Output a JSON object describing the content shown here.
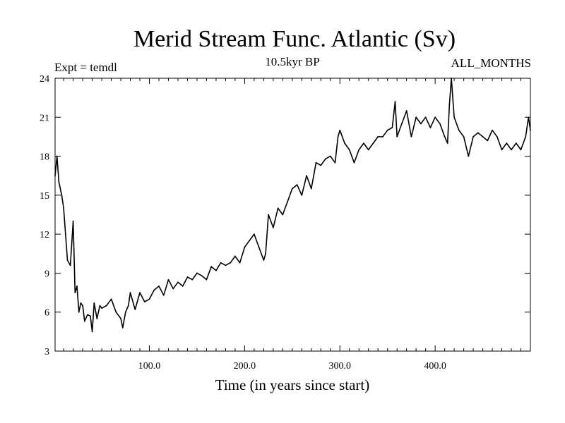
{
  "chart_data": {
    "type": "line",
    "title": "Merid Stream Func. Atlantic (Sv)",
    "left_label": "Expt = temdl",
    "center_label": "10.5kyr BP",
    "right_label": "ALL_MONTHS",
    "xlabel": "Time (in years since start)",
    "ylabel": "",
    "xlim": [
      1,
      500
    ],
    "ylim": [
      3,
      24
    ],
    "x_ticks": [
      100,
      200,
      300,
      400
    ],
    "x_tick_labels": [
      "100.0",
      "200.0",
      "300.0",
      "400.0"
    ],
    "y_ticks": [
      3,
      6,
      9,
      12,
      15,
      18,
      21,
      24
    ],
    "y_tick_labels": [
      "3",
      "6",
      "9",
      "12",
      "15",
      "18",
      "21",
      "24"
    ],
    "grid": false,
    "line_color": "#000000",
    "series": [
      {
        "name": "Merid Stream Func. Atlantic",
        "x": [
          1,
          3,
          5,
          8,
          10,
          12,
          14,
          17,
          20,
          22,
          24,
          26,
          28,
          30,
          32,
          35,
          38,
          40,
          42,
          45,
          48,
          50,
          55,
          60,
          65,
          70,
          72,
          75,
          78,
          80,
          85,
          90,
          95,
          100,
          105,
          110,
          115,
          120,
          125,
          130,
          135,
          140,
          145,
          150,
          155,
          160,
          165,
          170,
          175,
          180,
          185,
          190,
          195,
          200,
          205,
          210,
          215,
          220,
          222,
          225,
          230,
          235,
          240,
          245,
          250,
          255,
          260,
          265,
          270,
          275,
          280,
          285,
          290,
          295,
          298,
          300,
          305,
          310,
          315,
          320,
          325,
          330,
          335,
          340,
          345,
          350,
          355,
          358,
          360,
          365,
          370,
          375,
          380,
          385,
          390,
          395,
          400,
          405,
          410,
          413,
          415,
          417,
          420,
          425,
          430,
          435,
          440,
          445,
          450,
          455,
          460,
          465,
          470,
          475,
          480,
          485,
          490,
          495,
          498,
          500
        ],
        "values": [
          16.5,
          18,
          16,
          15,
          14,
          12,
          10,
          9.6,
          13,
          7.5,
          8,
          6,
          6.7,
          6.5,
          5.3,
          5.8,
          5.7,
          4.5,
          6.7,
          5.5,
          6.5,
          6.3,
          6.5,
          7,
          6,
          5.5,
          4.8,
          6,
          6.5,
          7.5,
          6.2,
          7.5,
          6.8,
          7,
          7.7,
          8,
          7.3,
          8.5,
          7.8,
          8.3,
          8,
          8.7,
          8.5,
          9,
          8.8,
          8.5,
          9.5,
          9.2,
          9.8,
          9.6,
          9.8,
          10.3,
          9.8,
          11,
          11.5,
          12,
          11,
          10,
          10.5,
          13.5,
          12.5,
          14,
          13.5,
          14.5,
          15.5,
          15.8,
          15,
          16.5,
          15.5,
          17.5,
          17.3,
          17.8,
          18,
          17.5,
          19.5,
          20,
          19,
          18.5,
          17.5,
          18.5,
          19,
          18.5,
          19,
          19.5,
          19.5,
          20,
          20.2,
          22.2,
          19.5,
          20.5,
          21.5,
          19.5,
          21,
          20.5,
          21,
          20.2,
          21,
          20.5,
          19.5,
          19,
          22,
          24,
          21,
          20,
          19.5,
          18,
          19.5,
          19.8,
          19.5,
          19.2,
          20,
          19.5,
          18.5,
          19,
          18.5,
          19,
          18.5,
          19.5,
          21,
          20
        ]
      }
    ]
  }
}
